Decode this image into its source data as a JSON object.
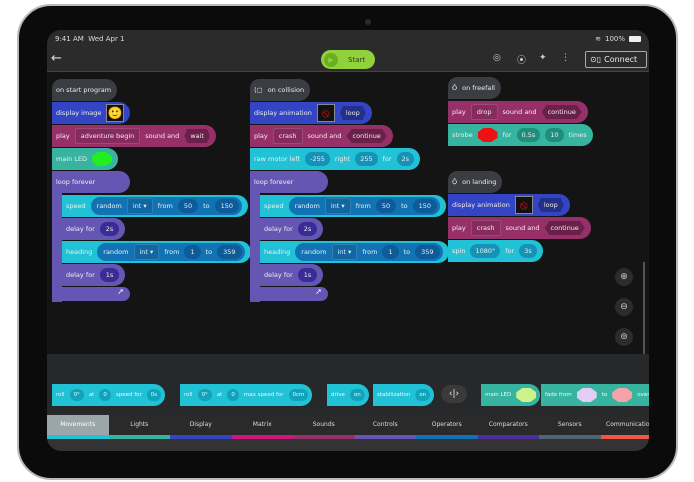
{
  "status": {
    "time": "9:41 AM",
    "date": "Wed Apr 1",
    "battery": "100%"
  },
  "toolbar": {
    "start_label": "Start",
    "connect_label": "Connect"
  },
  "scripts": {
    "start": {
      "event": "on start program",
      "display_image": "display image",
      "play": "play",
      "sound": "adventure begin",
      "sound_and": "sound and",
      "mode": "wait",
      "main_led": "main LED",
      "led_color": "#22ee22",
      "loop": "loop forever",
      "speed": {
        "label": "speed",
        "fn": "random",
        "type": "int",
        "from": "from",
        "min": "50",
        "to": "to",
        "max": "150"
      },
      "delay1": {
        "label": "delay for",
        "value": "2s"
      },
      "heading": {
        "label": "heading",
        "fn": "random",
        "type": "int",
        "from": "from",
        "min": "1",
        "to": "to",
        "max": "359"
      },
      "delay2": {
        "label": "delay for",
        "value": "1s"
      }
    },
    "collision": {
      "event": "on collision",
      "display_animation": "display animation",
      "anim_mode": "loop",
      "play": "play",
      "sound": "crash",
      "sound_and": "sound and",
      "mode": "continue",
      "raw": {
        "label": "raw motor left",
        "left": "-255",
        "right_label": "right",
        "right": "255",
        "for": "for",
        "time": "2s"
      },
      "loop": "loop forever",
      "speed": {
        "label": "speed",
        "fn": "random",
        "type": "int",
        "from": "from",
        "min": "50",
        "to": "to",
        "max": "150"
      },
      "delay1": {
        "label": "delay for",
        "value": "2s"
      },
      "heading": {
        "label": "heading",
        "fn": "random",
        "type": "int",
        "from": "from",
        "min": "1",
        "to": "to",
        "max": "359"
      },
      "delay2": {
        "label": "delay for",
        "value": "1s"
      }
    },
    "freefall": {
      "event": "on freefall",
      "play": "play",
      "sound": "drop",
      "sound_and": "sound and",
      "mode": "continue",
      "strobe": "strobe",
      "strobe_color": "#ee1111",
      "for": "for",
      "duration": "0.5s",
      "count": "10",
      "times": "times"
    },
    "landing": {
      "event": "on landing",
      "display_animation": "display animation",
      "anim_mode": "loop",
      "play": "play",
      "sound": "crash",
      "sound_and": "sound and",
      "mode": "continue",
      "spin": "spin",
      "angle": "1080°",
      "for": "for",
      "time": "3s"
    }
  },
  "palette": {
    "roll1": {
      "label": "roll",
      "angle": "0°",
      "at": "at",
      "speed": "0",
      "suffix": "speed for",
      "time": "0s"
    },
    "roll2": {
      "label": "roll",
      "angle": "0°",
      "at": "at",
      "speed": "0",
      "suffix": "max speed for",
      "dist": "0cm"
    },
    "drive": {
      "label": "drive",
      "value": "on"
    },
    "stab": {
      "label": "stabilization",
      "value": "on"
    },
    "led": {
      "label": "main LED",
      "color": "#ccf28a"
    },
    "fade": {
      "label": "fade from",
      "to": "to",
      "over": "over",
      "from_color": "#e3cdf5",
      "to_color": "#f5a3a8"
    }
  },
  "tabs": [
    {
      "label": "Movements",
      "color": "#22c1d6"
    },
    {
      "label": "Lights",
      "color": "#37b49f"
    },
    {
      "label": "Display",
      "color": "#3344c4"
    },
    {
      "label": "Matrix",
      "color": "#d0157f"
    },
    {
      "label": "Sounds",
      "color": "#973069"
    },
    {
      "label": "Controls",
      "color": "#6656b3"
    },
    {
      "label": "Operators",
      "color": "#1273b4"
    },
    {
      "label": "Comparators",
      "color": "#4a2e9e"
    },
    {
      "label": "Sensors",
      "color": "#4f6470"
    },
    {
      "label": "Communications",
      "color": "#f05545"
    }
  ]
}
